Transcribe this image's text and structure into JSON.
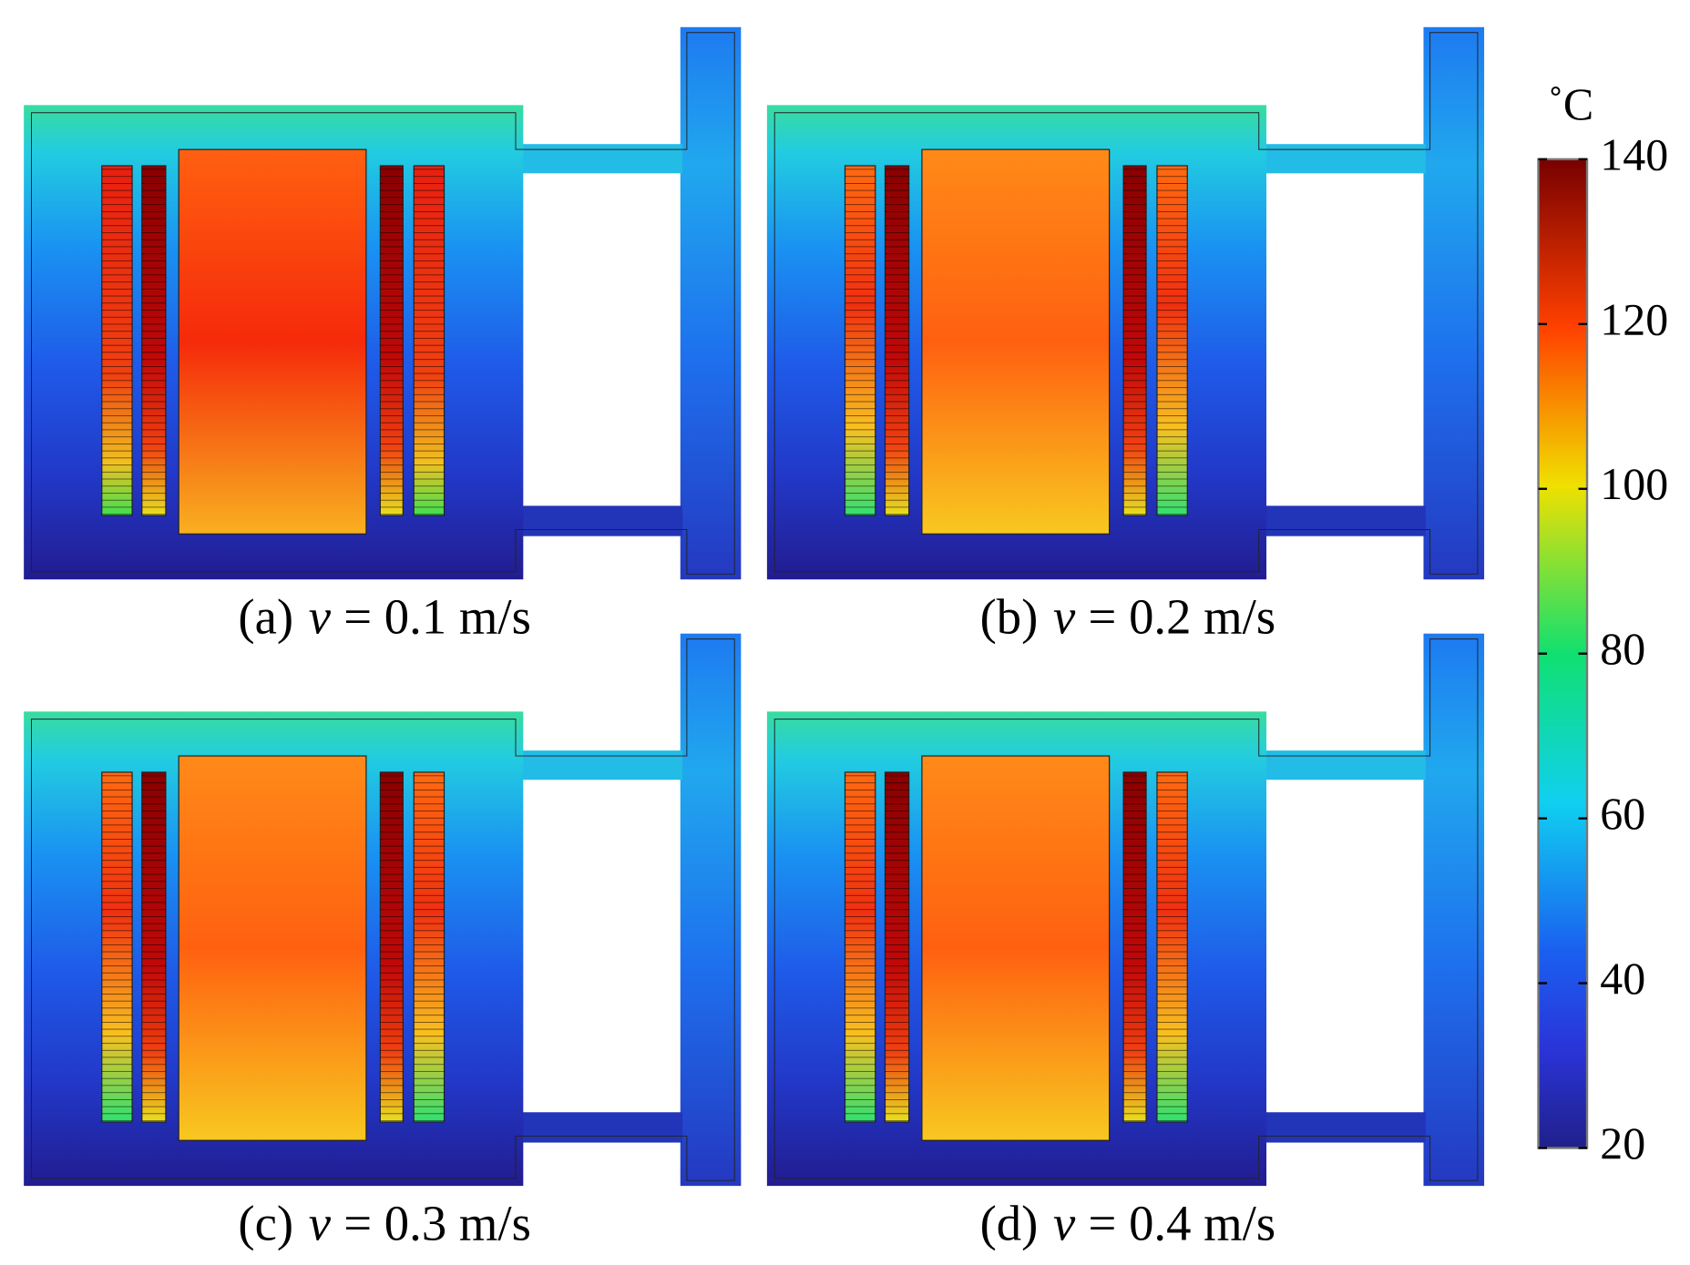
{
  "panels": [
    {
      "label": "(a)",
      "symbol": "v",
      "text": "= 0.1 m/s"
    },
    {
      "label": "(b)",
      "symbol": "v",
      "text": "= 0.2 m/s"
    },
    {
      "label": "(c)",
      "symbol": "v",
      "text": "= 0.3 m/s"
    },
    {
      "label": "(d)",
      "symbol": "v",
      "text": "= 0.4 m/s"
    }
  ],
  "colorbar": {
    "unit": "˚C",
    "lim": [
      20,
      140
    ],
    "ticks": [
      20,
      40,
      60,
      80,
      100,
      120,
      140
    ]
  }
}
